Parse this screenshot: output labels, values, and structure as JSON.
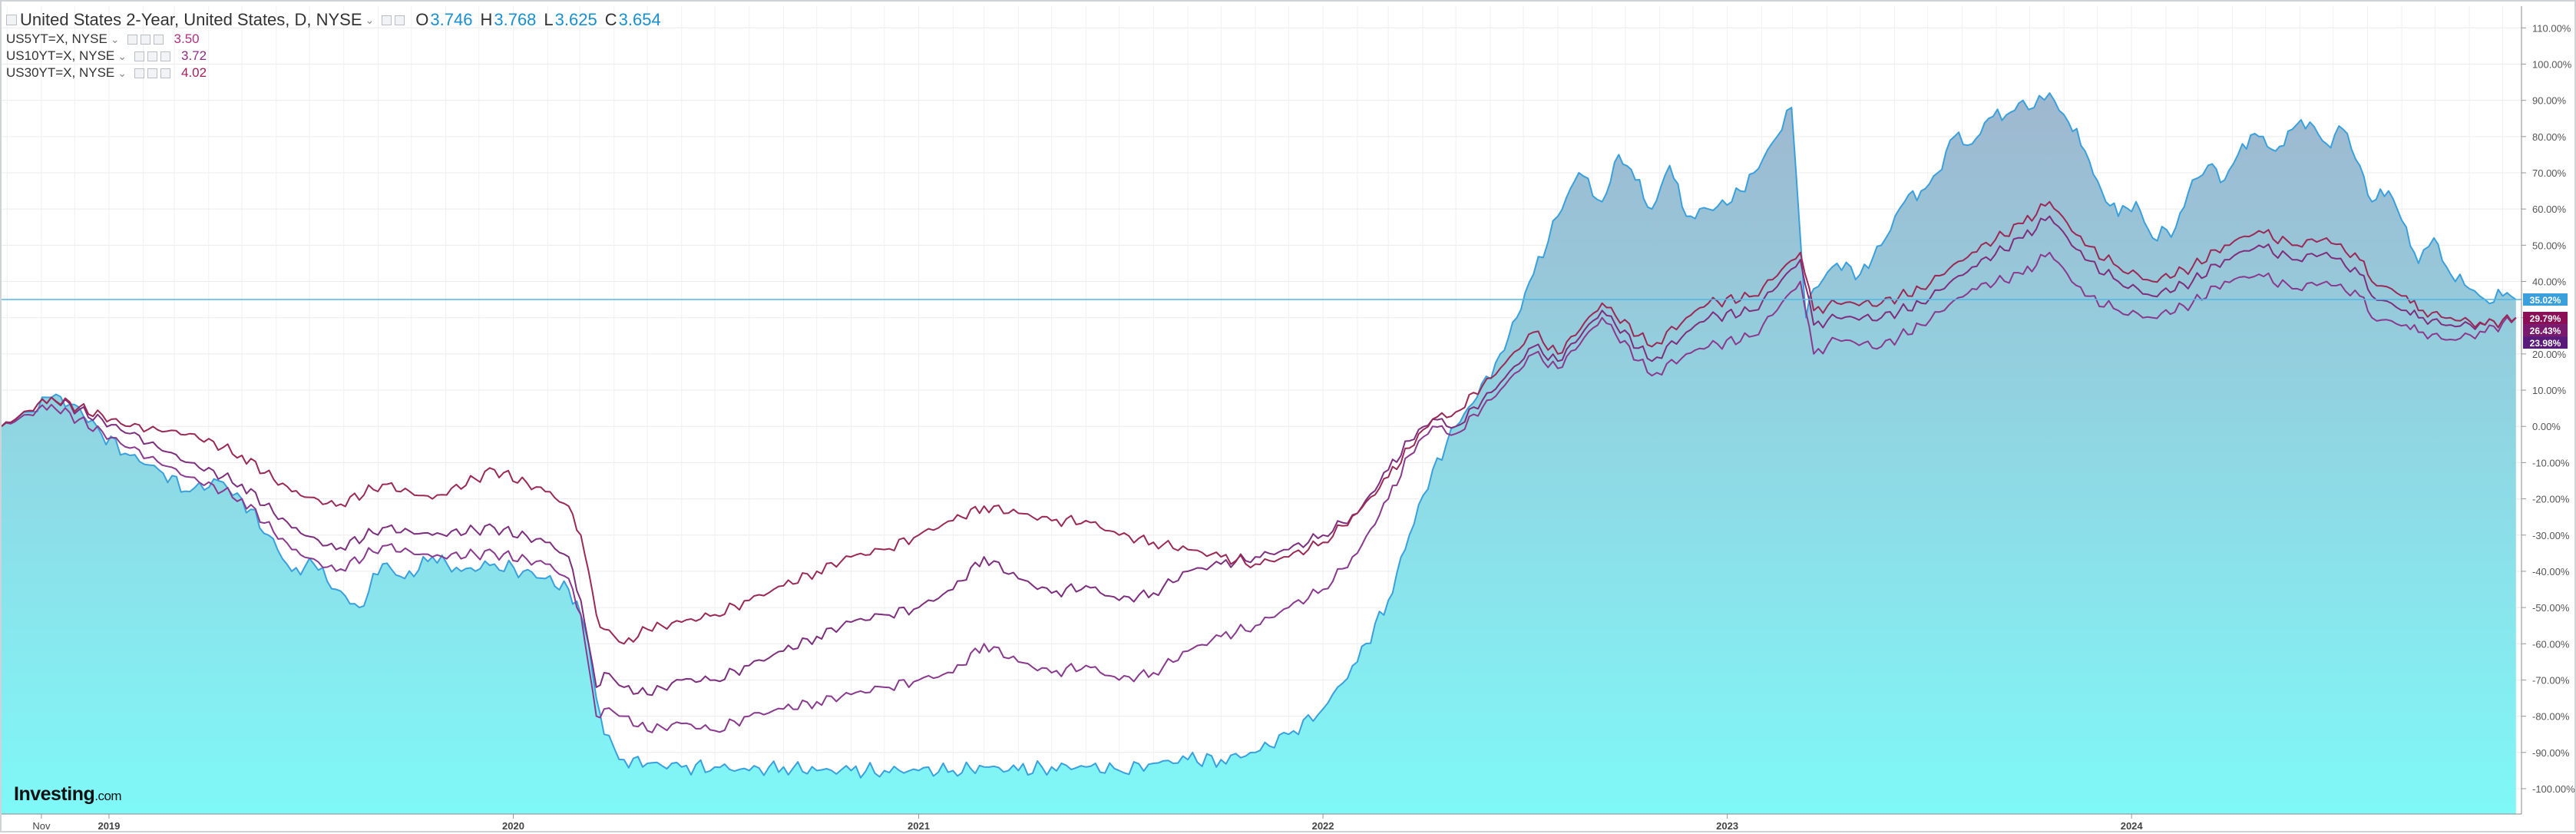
{
  "legend": {
    "main": {
      "title": "United States 2-Year, United States, D, NYSE",
      "o_label": "O",
      "o_value": "3.746",
      "h_label": "H",
      "h_value": "3.768",
      "l_label": "L",
      "l_value": "3.625",
      "c_label": "C",
      "c_value": "3.654"
    },
    "compare": [
      {
        "symbol": "US5YT=X, NYSE",
        "value": "3.50",
        "color": "#b0307e"
      },
      {
        "symbol": "US10YT=X, NYSE",
        "value": "3.72",
        "color": "#8e2c86"
      },
      {
        "symbol": "US30YT=X, NYSE",
        "value": "4.02",
        "color": "#a31e5a"
      }
    ]
  },
  "logo": {
    "brand": "Investing",
    "suffix": ".com"
  },
  "colors": {
    "main_line": "#3aa0dc",
    "area_top": "#9fb7cf",
    "area_bottom": "#7ff8f8",
    "us5y": "#8a3a8e",
    "us10y": "#7d2f7e",
    "us30y": "#9a2a55",
    "current_line": "#4fb8e6"
  },
  "chart_data": {
    "type": "area",
    "title": "United States 2-Year, United States, D, NYSE",
    "x_tick_labels": [
      "Nov",
      "2019",
      "2020",
      "2021",
      "2022",
      "2023",
      "2024"
    ],
    "x_ticks": [
      "2018-11-01",
      "2019-01-01",
      "2020-01-01",
      "2021-01-01",
      "2022-01-01",
      "2023-01-01",
      "2024-01-01"
    ],
    "xlim": [
      "2018-09-26",
      "2024-12-18"
    ],
    "y_tick_labels": [
      "110.00%",
      "100.00%",
      "90.00%",
      "80.00%",
      "70.00%",
      "60.00%",
      "50.00%",
      "40.00%",
      "30.00%",
      "20.00%",
      "10.00%",
      "0.00%",
      "-10.00%",
      "-20.00%",
      "-30.00%",
      "-40.00%",
      "-50.00%",
      "-60.00%",
      "-70.00%",
      "-80.00%",
      "-90.00%",
      "-100.00%"
    ],
    "y_ticks": [
      110,
      100,
      90,
      80,
      70,
      60,
      50,
      40,
      30,
      20,
      10,
      0,
      -10,
      -20,
      -30,
      -40,
      -50,
      -60,
      -70,
      -80,
      -90,
      -100
    ],
    "ylim": [
      -107,
      116
    ],
    "y_unit": "% change",
    "grid": true,
    "current_values": [
      {
        "label": "35.02%",
        "value": 35.02
      },
      {
        "label": "29.79%",
        "value": 29.79
      },
      {
        "label": "26.43%",
        "value": 26.43
      },
      {
        "label": "23.98%",
        "value": 23.98
      }
    ],
    "series": [
      {
        "key": "us2y",
        "x": [
          "2018-09-26",
          "2018-10-20",
          "2018-11-10",
          "2018-12-01",
          "2018-12-25",
          "2019-01-20",
          "2019-02-15",
          "2019-03-15",
          "2019-04-10",
          "2019-05-01",
          "2019-05-25",
          "2019-06-15",
          "2019-07-05",
          "2019-07-25",
          "2019-08-15",
          "2019-09-05",
          "2019-09-25",
          "2019-10-20",
          "2019-11-15",
          "2019-12-15",
          "2020-01-10",
          "2020-01-30",
          "2020-02-20",
          "2020-03-02",
          "2020-03-09",
          "2020-03-16",
          "2020-03-23",
          "2020-04-10",
          "2020-05-01",
          "2020-06-01",
          "2020-07-01",
          "2020-08-01",
          "2020-09-01",
          "2020-10-01",
          "2020-11-01",
          "2020-12-01",
          "2021-01-01",
          "2021-02-01",
          "2021-03-01",
          "2021-04-01",
          "2021-05-01",
          "2021-06-01",
          "2021-07-01",
          "2021-08-01",
          "2021-09-01",
          "2021-10-01",
          "2021-11-01",
          "2021-12-01",
          "2022-01-01",
          "2022-02-01",
          "2022-03-01",
          "2022-03-20",
          "2022-04-10",
          "2022-05-01",
          "2022-05-20",
          "2022-06-10",
          "2022-06-25",
          "2022-07-10",
          "2022-08-01",
          "2022-08-20",
          "2022-09-10",
          "2022-09-25",
          "2022-10-10",
          "2022-10-25",
          "2022-11-10",
          "2022-11-25",
          "2022-12-15",
          "2023-01-05",
          "2023-01-25",
          "2023-02-15",
          "2023-02-28",
          "2023-03-08",
          "2023-03-13",
          "2023-03-20",
          "2023-04-10",
          "2023-05-01",
          "2023-05-20",
          "2023-06-10",
          "2023-06-25",
          "2023-07-10",
          "2023-07-25",
          "2023-08-10",
          "2023-08-25",
          "2023-09-10",
          "2023-09-25",
          "2023-10-05",
          "2023-10-19",
          "2023-11-05",
          "2023-11-20",
          "2023-12-05",
          "2023-12-20",
          "2024-01-05",
          "2024-01-20",
          "2024-02-10",
          "2024-02-25",
          "2024-03-10",
          "2024-03-25",
          "2024-04-10",
          "2024-04-25",
          "2024-05-10",
          "2024-05-25",
          "2024-06-10",
          "2024-06-25",
          "2024-07-10",
          "2024-07-25",
          "2024-08-05",
          "2024-08-20",
          "2024-09-05",
          "2024-09-16",
          "2024-09-30",
          "2024-10-15",
          "2024-11-01",
          "2024-11-15",
          "2024-12-01",
          "2024-12-13"
        ],
        "y": [
          0,
          4,
          8,
          6,
          -2,
          -8,
          -12,
          -18,
          -15,
          -20,
          -30,
          -40,
          -38,
          -45,
          -50,
          -38,
          -42,
          -36,
          -40,
          -38,
          -40,
          -42,
          -45,
          -52,
          -60,
          -75,
          -85,
          -92,
          -93,
          -94,
          -94,
          -95,
          -94,
          -95,
          -95,
          -95,
          -95,
          -95,
          -94,
          -95,
          -94,
          -94,
          -95,
          -93,
          -92,
          -92,
          -90,
          -85,
          -78,
          -65,
          -48,
          -30,
          -12,
          0,
          8,
          20,
          30,
          42,
          58,
          70,
          62,
          75,
          68,
          60,
          72,
          58,
          60,
          62,
          70,
          80,
          88,
          52,
          30,
          38,
          45,
          42,
          50,
          62,
          65,
          70,
          80,
          78,
          85,
          86,
          90,
          88,
          92,
          84,
          76,
          65,
          58,
          62,
          52,
          55,
          68,
          72,
          68,
          78,
          80,
          76,
          82,
          84,
          78,
          82,
          72,
          62,
          65,
          55,
          45,
          52,
          42,
          38,
          35,
          36,
          35
        ]
      },
      {
        "key": "us5y",
        "x": [
          "2018-09-26",
          "2018-11-10",
          "2019-01-20",
          "2019-03-15",
          "2019-05-01",
          "2019-06-15",
          "2019-07-25",
          "2019-09-05",
          "2019-10-20",
          "2019-12-15",
          "2020-01-30",
          "2020-02-20",
          "2020-03-02",
          "2020-03-09",
          "2020-03-16",
          "2020-03-23",
          "2020-04-10",
          "2020-05-01",
          "2020-06-01",
          "2020-07-01",
          "2020-08-01",
          "2020-09-01",
          "2020-10-01",
          "2020-11-01",
          "2020-12-01",
          "2021-01-01",
          "2021-02-01",
          "2021-03-01",
          "2021-04-01",
          "2021-05-01",
          "2021-06-01",
          "2021-07-01",
          "2021-08-01",
          "2021-09-01",
          "2021-10-01",
          "2021-11-01",
          "2021-12-01",
          "2022-01-01",
          "2022-02-01",
          "2022-03-01",
          "2022-03-20",
          "2022-04-10",
          "2022-05-01",
          "2022-06-10",
          "2022-07-10",
          "2022-08-01",
          "2022-09-10",
          "2022-10-25",
          "2022-11-25",
          "2022-12-15",
          "2023-01-25",
          "2023-03-08",
          "2023-03-20",
          "2023-04-10",
          "2023-05-20",
          "2023-06-25",
          "2023-08-10",
          "2023-09-25",
          "2023-10-19",
          "2023-11-20",
          "2023-12-20",
          "2024-01-20",
          "2024-02-25",
          "2024-03-25",
          "2024-04-25",
          "2024-05-25",
          "2024-06-25",
          "2024-07-25",
          "2024-08-05",
          "2024-09-05",
          "2024-09-16",
          "2024-10-15",
          "2024-11-15",
          "2024-12-13"
        ],
        "y": [
          0,
          6,
          -6,
          -14,
          -20,
          -34,
          -40,
          -33,
          -36,
          -35,
          -38,
          -42,
          -52,
          -66,
          -80,
          -78,
          -80,
          -84,
          -82,
          -84,
          -80,
          -78,
          -76,
          -74,
          -72,
          -70,
          -68,
          -60,
          -65,
          -68,
          -66,
          -70,
          -68,
          -62,
          -58,
          -55,
          -50,
          -45,
          -35,
          -20,
          -8,
          0,
          -2,
          10,
          20,
          16,
          30,
          14,
          20,
          22,
          25,
          40,
          20,
          24,
          22,
          28,
          38,
          42,
          48,
          36,
          32,
          30,
          34,
          40,
          42,
          38,
          40,
          36,
          30,
          28,
          26,
          24,
          26,
          30
        ]
      },
      {
        "key": "us10y",
        "x": [
          "2018-09-26",
          "2018-11-10",
          "2019-01-20",
          "2019-03-15",
          "2019-05-01",
          "2019-06-15",
          "2019-07-25",
          "2019-09-05",
          "2019-10-20",
          "2019-12-15",
          "2020-01-30",
          "2020-02-20",
          "2020-03-02",
          "2020-03-09",
          "2020-03-16",
          "2020-03-23",
          "2020-04-10",
          "2020-05-01",
          "2020-06-01",
          "2020-07-01",
          "2020-08-01",
          "2020-09-01",
          "2020-10-01",
          "2020-11-01",
          "2020-12-01",
          "2021-01-01",
          "2021-02-01",
          "2021-03-01",
          "2021-04-01",
          "2021-05-01",
          "2021-06-01",
          "2021-07-01",
          "2021-08-01",
          "2021-09-01",
          "2021-10-01",
          "2021-11-01",
          "2021-12-01",
          "2022-01-01",
          "2022-02-01",
          "2022-03-01",
          "2022-03-20",
          "2022-04-10",
          "2022-05-01",
          "2022-06-10",
          "2022-07-10",
          "2022-08-01",
          "2022-09-10",
          "2022-10-25",
          "2022-11-25",
          "2022-12-15",
          "2023-01-25",
          "2023-03-08",
          "2023-03-20",
          "2023-04-10",
          "2023-05-20",
          "2023-06-25",
          "2023-08-10",
          "2023-09-25",
          "2023-10-19",
          "2023-11-20",
          "2023-12-20",
          "2024-01-20",
          "2024-02-25",
          "2024-03-25",
          "2024-04-25",
          "2024-05-25",
          "2024-06-25",
          "2024-07-25",
          "2024-08-05",
          "2024-09-05",
          "2024-09-16",
          "2024-10-15",
          "2024-11-15",
          "2024-12-13"
        ],
        "y": [
          0,
          8,
          -2,
          -10,
          -16,
          -28,
          -34,
          -28,
          -30,
          -28,
          -32,
          -36,
          -48,
          -60,
          -72,
          -68,
          -72,
          -74,
          -70,
          -70,
          -66,
          -62,
          -58,
          -54,
          -52,
          -50,
          -45,
          -36,
          -42,
          -46,
          -44,
          -48,
          -46,
          -40,
          -38,
          -36,
          -34,
          -30,
          -24,
          -12,
          -4,
          2,
          0,
          12,
          22,
          18,
          32,
          18,
          26,
          30,
          32,
          46,
          28,
          30,
          30,
          34,
          44,
          52,
          58,
          46,
          40,
          36,
          40,
          46,
          50,
          46,
          48,
          42,
          36,
          32,
          30,
          28,
          28,
          30
        ]
      },
      {
        "key": "us30y",
        "x": [
          "2018-09-26",
          "2018-11-10",
          "2019-01-20",
          "2019-03-15",
          "2019-05-01",
          "2019-06-15",
          "2019-07-25",
          "2019-09-05",
          "2019-10-20",
          "2019-12-15",
          "2020-01-30",
          "2020-02-20",
          "2020-03-02",
          "2020-03-09",
          "2020-03-16",
          "2020-03-23",
          "2020-04-10",
          "2020-05-01",
          "2020-06-01",
          "2020-07-01",
          "2020-08-01",
          "2020-09-01",
          "2020-10-01",
          "2020-11-01",
          "2020-12-01",
          "2021-01-01",
          "2021-02-01",
          "2021-03-01",
          "2021-04-01",
          "2021-05-01",
          "2021-06-01",
          "2021-07-01",
          "2021-08-01",
          "2021-09-01",
          "2021-10-01",
          "2021-11-01",
          "2021-12-01",
          "2022-01-01",
          "2022-02-01",
          "2022-03-01",
          "2022-03-20",
          "2022-04-10",
          "2022-05-01",
          "2022-06-10",
          "2022-07-10",
          "2022-08-01",
          "2022-09-10",
          "2022-10-25",
          "2022-11-25",
          "2022-12-15",
          "2023-01-25",
          "2023-03-08",
          "2023-03-20",
          "2023-04-10",
          "2023-05-20",
          "2023-06-25",
          "2023-08-10",
          "2023-09-25",
          "2023-10-19",
          "2023-11-20",
          "2023-12-20",
          "2024-01-20",
          "2024-02-25",
          "2024-03-25",
          "2024-04-25",
          "2024-05-25",
          "2024-06-25",
          "2024-07-25",
          "2024-08-05",
          "2024-09-05",
          "2024-09-16",
          "2024-10-15",
          "2024-11-15",
          "2024-12-13"
        ],
        "y": [
          0,
          8,
          0,
          -2,
          -8,
          -18,
          -22,
          -16,
          -20,
          -12,
          -18,
          -22,
          -30,
          -40,
          -52,
          -56,
          -60,
          -56,
          -54,
          -52,
          -48,
          -44,
          -40,
          -36,
          -34,
          -30,
          -26,
          -22,
          -24,
          -26,
          -26,
          -30,
          -32,
          -34,
          -36,
          -38,
          -36,
          -32,
          -24,
          -14,
          -6,
          2,
          4,
          16,
          26,
          20,
          34,
          22,
          30,
          34,
          36,
          48,
          32,
          34,
          34,
          38,
          48,
          56,
          62,
          50,
          44,
          40,
          44,
          50,
          54,
          50,
          52,
          46,
          40,
          36,
          32,
          30,
          28,
          30
        ]
      }
    ]
  }
}
